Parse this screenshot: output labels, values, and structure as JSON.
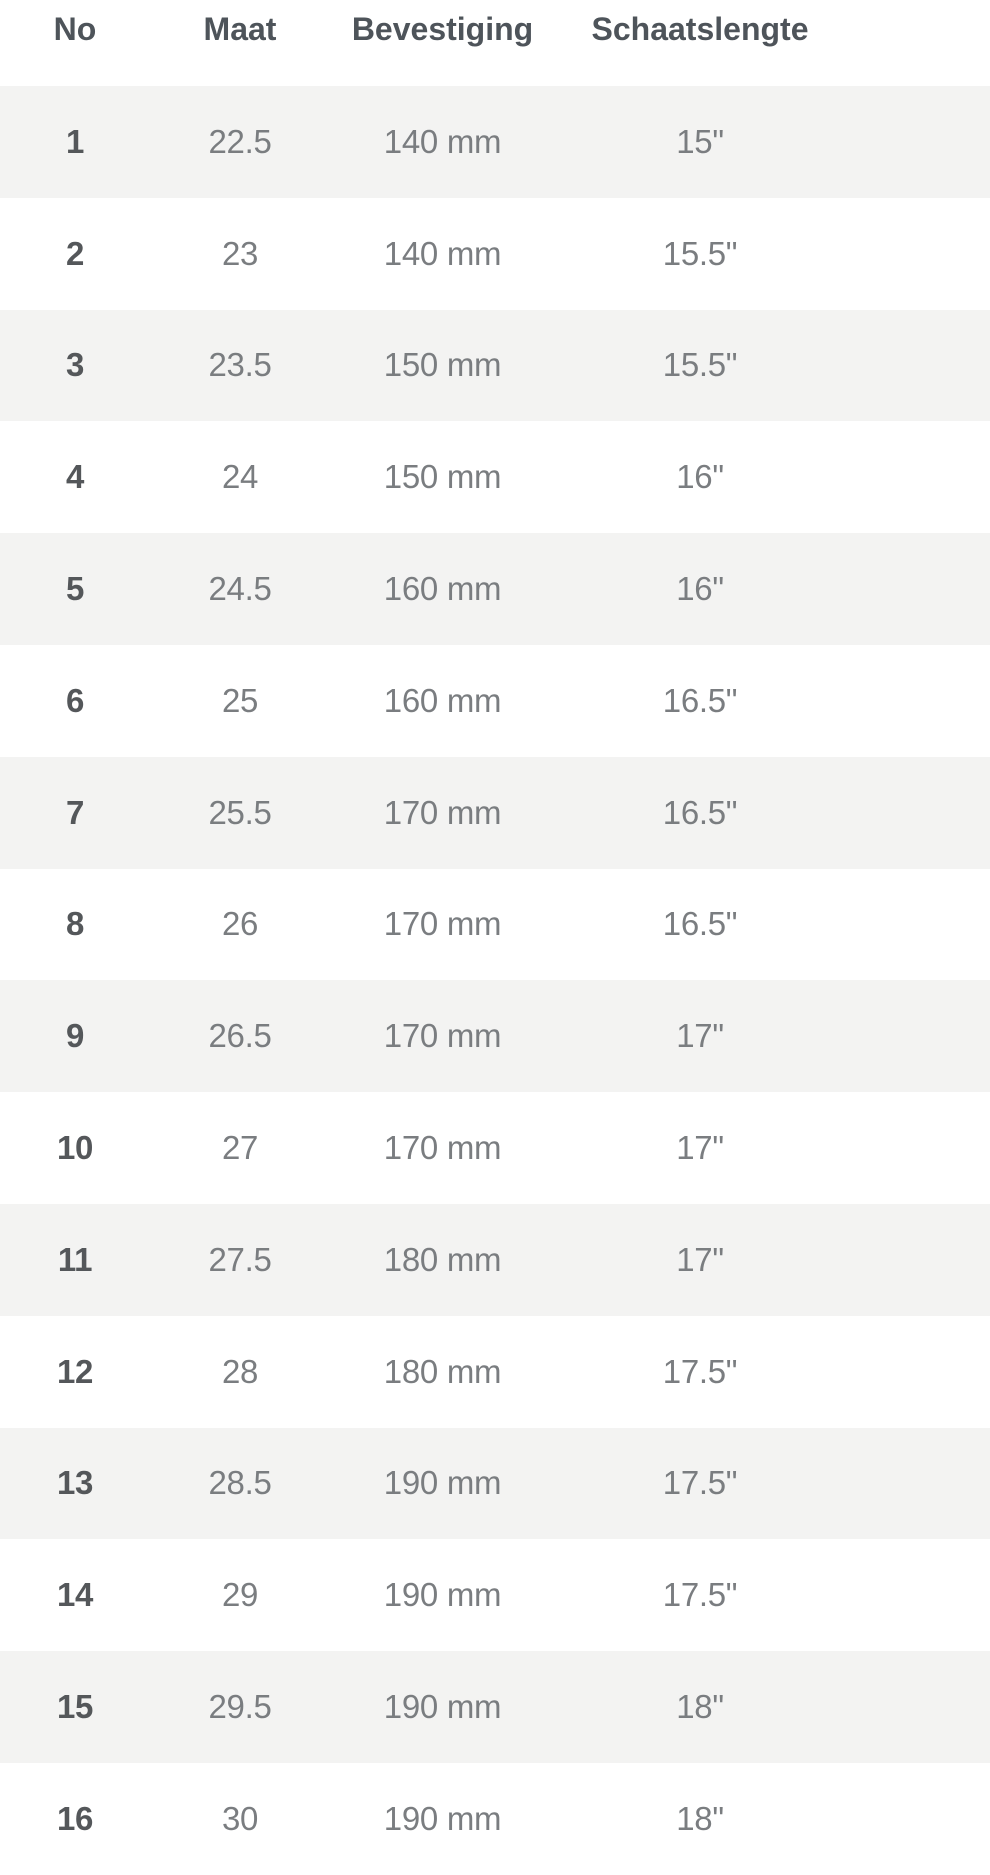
{
  "table": {
    "columns": [
      {
        "key": "no",
        "label": "No"
      },
      {
        "key": "maat",
        "label": "Maat"
      },
      {
        "key": "bevestiging",
        "label": "Bevestiging"
      },
      {
        "key": "schaatslengte",
        "label": "Schaatslengte"
      }
    ],
    "rows": [
      {
        "no": "1",
        "maat": "22.5",
        "bevestiging": "140 mm",
        "schaatslengte": "15\""
      },
      {
        "no": "2",
        "maat": "23",
        "bevestiging": "140 mm",
        "schaatslengte": "15.5\""
      },
      {
        "no": "3",
        "maat": "23.5",
        "bevestiging": "150 mm",
        "schaatslengte": "15.5\""
      },
      {
        "no": "4",
        "maat": "24",
        "bevestiging": "150 mm",
        "schaatslengte": "16\""
      },
      {
        "no": "5",
        "maat": "24.5",
        "bevestiging": "160 mm",
        "schaatslengte": "16\""
      },
      {
        "no": "6",
        "maat": "25",
        "bevestiging": "160 mm",
        "schaatslengte": "16.5\""
      },
      {
        "no": "7",
        "maat": "25.5",
        "bevestiging": "170 mm",
        "schaatslengte": "16.5\""
      },
      {
        "no": "8",
        "maat": "26",
        "bevestiging": "170 mm",
        "schaatslengte": "16.5\""
      },
      {
        "no": "9",
        "maat": "26.5",
        "bevestiging": "170 mm",
        "schaatslengte": "17\""
      },
      {
        "no": "10",
        "maat": "27",
        "bevestiging": "170 mm",
        "schaatslengte": "17\""
      },
      {
        "no": "11",
        "maat": "27.5",
        "bevestiging": "180 mm",
        "schaatslengte": "17\""
      },
      {
        "no": "12",
        "maat": "28",
        "bevestiging": "180 mm",
        "schaatslengte": "17.5\""
      },
      {
        "no": "13",
        "maat": "28.5",
        "bevestiging": "190 mm",
        "schaatslengte": "17.5\""
      },
      {
        "no": "14",
        "maat": "29",
        "bevestiging": "190 mm",
        "schaatslengte": "17.5\""
      },
      {
        "no": "15",
        "maat": "29.5",
        "bevestiging": "190 mm",
        "schaatslengte": "18\""
      },
      {
        "no": "16",
        "maat": "30",
        "bevestiging": "190 mm",
        "schaatslengte": "18\""
      }
    ]
  },
  "colors": {
    "stripe": "#f3f3f2",
    "header-text": "#4e545a",
    "body-text": "#7a7d80",
    "rownum-text": "#54575a",
    "bg": "#ffffff"
  }
}
